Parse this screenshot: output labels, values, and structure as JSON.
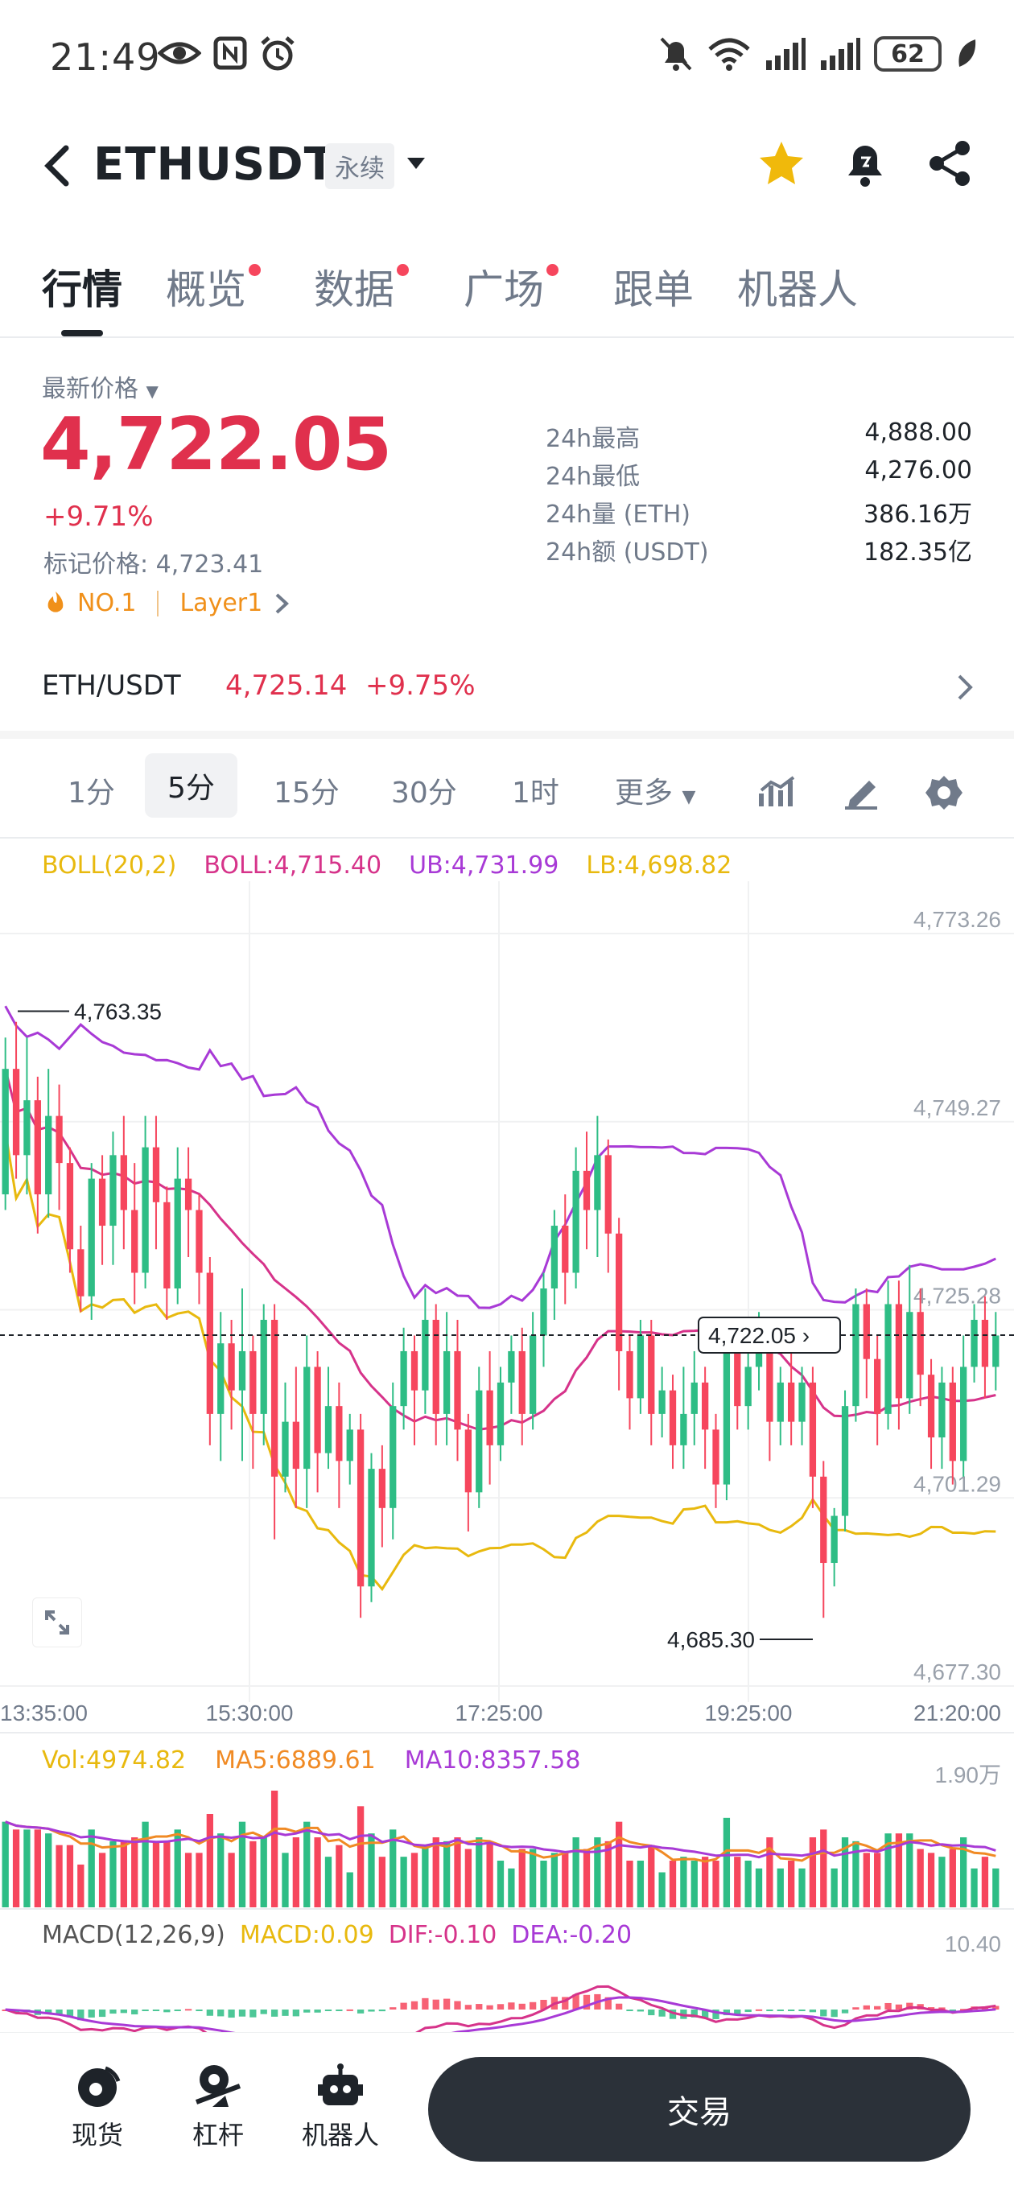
{
  "status_bar": {
    "time": "21:49",
    "battery": "62"
  },
  "header": {
    "symbol": "ETHUSDT",
    "contract_tag": "永续"
  },
  "tabs": [
    {
      "label": "行情",
      "dot": false,
      "active": true
    },
    {
      "label": "概览",
      "dot": true
    },
    {
      "label": "数据",
      "dot": true
    },
    {
      "label": "广场",
      "dot": true
    },
    {
      "label": "跟单",
      "dot": false
    },
    {
      "label": "机器人",
      "dot": false
    }
  ],
  "price": {
    "label": "最新价格",
    "last": "4,722.05",
    "change_pct": "+9.71%",
    "mark_label": "标记价格:",
    "mark_value": "4,723.41",
    "rank": "NO.1",
    "sector": "Layer1"
  },
  "stats": [
    {
      "key": "24h最高",
      "value": "4,888.00"
    },
    {
      "key": "24h最低",
      "value": "4,276.00"
    },
    {
      "key": "24h量 (ETH)",
      "value": "386.16万"
    },
    {
      "key": "24h额 (USDT)",
      "value": "182.35亿"
    }
  ],
  "pair": {
    "name": "ETH/USDT",
    "price": "4,725.14",
    "change": "+9.75%"
  },
  "intervals": [
    "1分",
    "5分",
    "15分",
    "30分",
    "1时",
    "更多"
  ],
  "active_interval": "5分",
  "boll_legend": {
    "boll": "BOLL(20,2)",
    "mid": "BOLL:4,715.40",
    "ub": "UB:4,731.99",
    "lb": "LB:4,698.82"
  },
  "colors": {
    "up": "#2ebd85",
    "down": "#f6465d",
    "boll_mid": "#d6338a",
    "boll_ub": "#a83ad6",
    "boll_lb": "#e8b90e",
    "accent_red": "#e0304d"
  },
  "chart_data": {
    "type": "candlestick",
    "y_axis_ticks": [
      "4,773.26",
      "4,749.27",
      "4,725.28",
      "4,701.29",
      "4,677.30"
    ],
    "x_axis_ticks": [
      "13:35:00",
      "15:30:00",
      "17:25:00",
      "19:25:00",
      "21:20:00"
    ],
    "ylim": [
      4677.3,
      4773.26
    ],
    "high_label": "4,763.35",
    "low_label": "4,685.30",
    "last_price_label": "4,722.05",
    "candles": [
      [
        4740,
        4756,
        4738,
        4760
      ],
      [
        4756,
        4745,
        4742,
        4762
      ],
      [
        4745,
        4752,
        4740,
        4760
      ],
      [
        4752,
        4740,
        4735,
        4755
      ],
      [
        4740,
        4750,
        4737,
        4756
      ],
      [
        4750,
        4744,
        4738,
        4754
      ],
      [
        4744,
        4733,
        4730,
        4746
      ],
      [
        4733,
        4727,
        4725,
        4736
      ],
      [
        4727,
        4742,
        4724,
        4744
      ],
      [
        4742,
        4736,
        4731,
        4745
      ],
      [
        4736,
        4745,
        4731,
        4748
      ],
      [
        4745,
        4738,
        4733,
        4750
      ],
      [
        4738,
        4730,
        4726,
        4744
      ],
      [
        4730,
        4746,
        4728,
        4750
      ],
      [
        4746,
        4739,
        4733,
        4750
      ],
      [
        4739,
        4728,
        4724,
        4741
      ],
      [
        4728,
        4742,
        4726,
        4746
      ],
      [
        4742,
        4738,
        4732,
        4746
      ],
      [
        4738,
        4730,
        4726,
        4740
      ],
      [
        4730,
        4712,
        4708,
        4732
      ],
      [
        4712,
        4721,
        4706,
        4725
      ],
      [
        4721,
        4715,
        4710,
        4724
      ],
      [
        4715,
        4720,
        4706,
        4728
      ],
      [
        4720,
        4712,
        4705,
        4722
      ],
      [
        4712,
        4724,
        4708,
        4726
      ],
      [
        4724,
        4704,
        4696,
        4726
      ],
      [
        4704,
        4711,
        4702,
        4716
      ],
      [
        4711,
        4705,
        4700,
        4718
      ],
      [
        4705,
        4718,
        4700,
        4722
      ],
      [
        4718,
        4707,
        4702,
        4720
      ],
      [
        4707,
        4713,
        4705,
        4718
      ],
      [
        4713,
        4706,
        4700,
        4716
      ],
      [
        4706,
        4710,
        4703,
        4712
      ],
      [
        4710,
        4690,
        4686,
        4712
      ],
      [
        4690,
        4705,
        4688,
        4707
      ],
      [
        4705,
        4700,
        4695,
        4708
      ],
      [
        4700,
        4713,
        4696,
        4716
      ],
      [
        4713,
        4720,
        4710,
        4723
      ],
      [
        4720,
        4715,
        4708,
        4722
      ],
      [
        4715,
        4724,
        4712,
        4728
      ],
      [
        4724,
        4712,
        4708,
        4726
      ],
      [
        4712,
        4720,
        4708,
        4725
      ],
      [
        4720,
        4710,
        4706,
        4724
      ],
      [
        4710,
        4702,
        4697,
        4712
      ],
      [
        4702,
        4715,
        4700,
        4718
      ],
      [
        4715,
        4708,
        4703,
        4720
      ],
      [
        4708,
        4716,
        4706,
        4718
      ],
      [
        4716,
        4720,
        4712,
        4722
      ],
      [
        4720,
        4712,
        4708,
        4723
      ],
      [
        4712,
        4722,
        4710,
        4725
      ],
      [
        4722,
        4728,
        4718,
        4730
      ],
      [
        4728,
        4736,
        4724,
        4738
      ],
      [
        4736,
        4730,
        4726,
        4740
      ],
      [
        4730,
        4743,
        4728,
        4746
      ],
      [
        4743,
        4738,
        4733,
        4748
      ],
      [
        4738,
        4745,
        4732,
        4750
      ],
      [
        4745,
        4735,
        4730,
        4747
      ],
      [
        4735,
        4720,
        4715,
        4737
      ],
      [
        4720,
        4714,
        4710,
        4722
      ],
      [
        4714,
        4722,
        4712,
        4724
      ],
      [
        4722,
        4712,
        4708,
        4724
      ],
      [
        4712,
        4715,
        4709,
        4718
      ],
      [
        4715,
        4708,
        4705,
        4717
      ],
      [
        4708,
        4712,
        4705,
        4718
      ],
      [
        4712,
        4716,
        4708,
        4720
      ],
      [
        4716,
        4710,
        4705,
        4718
      ],
      [
        4710,
        4703,
        4700,
        4712
      ],
      [
        4703,
        4720,
        4701,
        4724
      ],
      [
        4720,
        4713,
        4710,
        4723
      ],
      [
        4713,
        4718,
        4710,
        4722
      ],
      [
        4718,
        4722,
        4715,
        4725
      ],
      [
        4722,
        4711,
        4706,
        4724
      ],
      [
        4711,
        4716,
        4708,
        4718
      ],
      [
        4716,
        4711,
        4708,
        4720
      ],
      [
        4711,
        4716,
        4708,
        4718
      ],
      [
        4716,
        4704,
        4700,
        4718
      ],
      [
        4704,
        4693,
        4686,
        4706
      ],
      [
        4693,
        4699,
        4690,
        4700
      ],
      [
        4699,
        4713,
        4697,
        4715
      ],
      [
        4713,
        4726,
        4711,
        4728
      ],
      [
        4726,
        4719,
        4714,
        4728
      ],
      [
        4719,
        4712,
        4708,
        4722
      ],
      [
        4712,
        4726,
        4710,
        4729
      ],
      [
        4726,
        4714,
        4710,
        4729
      ],
      [
        4714,
        4725,
        4712,
        4731
      ],
      [
        4725,
        4717,
        4713,
        4728
      ],
      [
        4717,
        4709,
        4705,
        4719
      ],
      [
        4709,
        4716,
        4705,
        4718
      ],
      [
        4716,
        4706,
        4703,
        4718
      ],
      [
        4706,
        4718,
        4704,
        4722
      ],
      [
        4718,
        4724,
        4716,
        4726
      ],
      [
        4724,
        4718,
        4714,
        4727
      ],
      [
        4718,
        4722,
        4715,
        4725
      ]
    ]
  },
  "volume_legend": {
    "vol": "Vol:4974.82",
    "ma5": "MA5:6889.61",
    "ma10": "MA10:8357.58",
    "max": "1.90万"
  },
  "macd_legend": {
    "macd": "MACD(12,26,9)",
    "macd_val": "MACD:0.09",
    "dif": "DIF:-0.10",
    "dea": "DEA:-0.20",
    "max": "10.40"
  },
  "bottom_nav": {
    "spot": "现货",
    "margin": "杠杆",
    "bots": "机器人",
    "trade": "交易"
  }
}
